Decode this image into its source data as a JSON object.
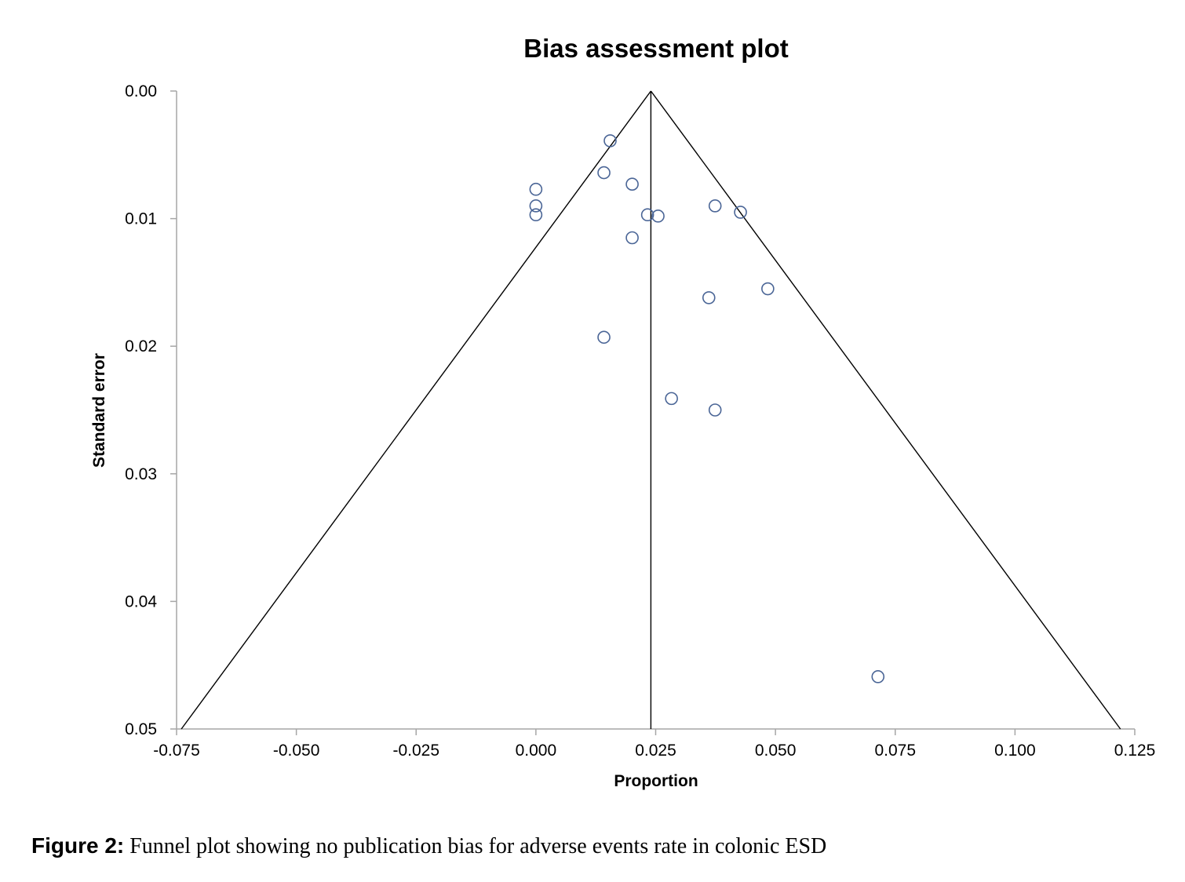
{
  "chart_data": {
    "type": "scatter",
    "title": "Bias assessment plot",
    "xlabel": "Proportion",
    "ylabel": "Standard error",
    "xlim": [
      -0.075,
      0.125
    ],
    "ylim": [
      0.05,
      0.0
    ],
    "y_inverted": true,
    "xticks": [
      "-0.075",
      "-0.050",
      "-0.025",
      "0.000",
      "0.025",
      "0.050",
      "0.075",
      "0.100",
      "0.125"
    ],
    "yticks": [
      "0.00",
      "0.01",
      "0.02",
      "0.03",
      "0.04",
      "0.05"
    ],
    "grid": false,
    "marker": "open-circle",
    "marker_color": "#4a6596",
    "line_color": "#000000",
    "pooled_estimate": 0.024,
    "funnel": {
      "apex": [
        0.024,
        0.0
      ],
      "left_bottom": [
        -0.074,
        0.05
      ],
      "right_bottom": [
        0.122,
        0.05
      ]
    },
    "points": [
      {
        "x": 0.0155,
        "y": 0.0039
      },
      {
        "x": 0.0142,
        "y": 0.0064
      },
      {
        "x": 0.0201,
        "y": 0.0073
      },
      {
        "x": 0.0,
        "y": 0.0077
      },
      {
        "x": 0.0,
        "y": 0.009
      },
      {
        "x": 0.0,
        "y": 0.0097
      },
      {
        "x": 0.0233,
        "y": 0.0097
      },
      {
        "x": 0.0255,
        "y": 0.0098
      },
      {
        "x": 0.0374,
        "y": 0.009
      },
      {
        "x": 0.0427,
        "y": 0.0095
      },
      {
        "x": 0.0201,
        "y": 0.0115
      },
      {
        "x": 0.0484,
        "y": 0.0155
      },
      {
        "x": 0.0361,
        "y": 0.0162
      },
      {
        "x": 0.0142,
        "y": 0.0193
      },
      {
        "x": 0.0283,
        "y": 0.0241
      },
      {
        "x": 0.0374,
        "y": 0.025
      },
      {
        "x": 0.0714,
        "y": 0.0459
      }
    ]
  },
  "caption": {
    "label": "Figure 2:",
    "text": "Funnel plot showing no publication bias for adverse events rate in colonic ESD"
  }
}
